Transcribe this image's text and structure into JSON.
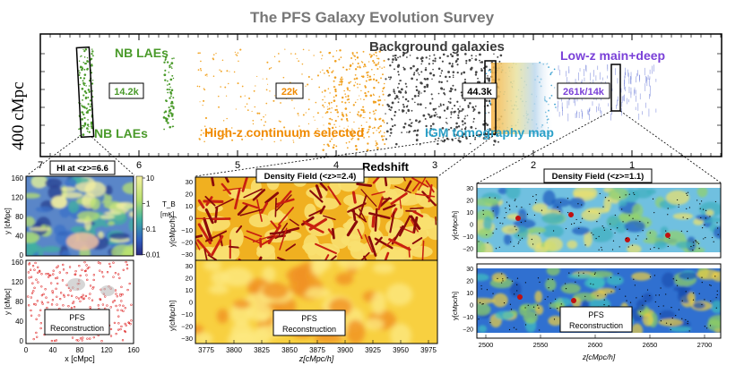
{
  "title": "The PFS Galaxy Evolution Survey",
  "strip": {
    "ylabel": "400 cMpc",
    "xlabel": "Redshift",
    "ticks": [
      "7",
      "6",
      "5",
      "4",
      "3",
      "2",
      "1"
    ],
    "labels": {
      "nb_laes_top": "NB LAEs",
      "nb_laes_bottom": "NB LAEs",
      "highz": "High-z continuum selected",
      "background": "Background galaxies",
      "igm": "IGM tomography map",
      "lowz": "Low-z main+deep"
    },
    "counts": {
      "nb": "14.2k",
      "highz": "22k",
      "background": "44.3k",
      "lowz": "261k/14k"
    }
  },
  "panel_hi": {
    "title": "HI at <z>=6.6",
    "ylabel": "y [cMpc]",
    "xlabel": "x [cMpc]",
    "yticks": [
      "160",
      "120",
      "80",
      "40",
      "0"
    ],
    "xticks": [
      "0",
      "40",
      "80",
      "120",
      "160"
    ],
    "cbar_ticks": [
      "10",
      "1",
      "0.1",
      "0.01"
    ],
    "cbar_label": "T_B",
    "cbar_unit": "[mK]",
    "recon_label_1": "PFS",
    "recon_label_2": "Reconstruction"
  },
  "panel_mid": {
    "title": "Density Field (<z>=2.4)",
    "ylabel_top": "y[cMpc/h]",
    "ylabel_bottom": "y[cMpc/h]",
    "xlabel": "z[cMpc/h]",
    "yticks": [
      "30",
      "20",
      "10",
      "0",
      "−10",
      "−20",
      "−30"
    ],
    "xticks": [
      "3775",
      "3800",
      "3825",
      "3850",
      "3875",
      "3900",
      "3925",
      "3950",
      "3975"
    ],
    "recon_label_1": "PFS",
    "recon_label_2": "Reconstruction"
  },
  "panel_right": {
    "title": "Density Field (<z>=1.1)",
    "ylabel_top": "y[cMpc/h]",
    "ylabel_bottom": "y[cMpc/h]",
    "xlabel": "z[cMpc/h]",
    "yticks_top": [
      "30",
      "20",
      "10",
      "0",
      "−10",
      "−20"
    ],
    "yticks_bottom": [
      "30",
      "20",
      "10",
      "0",
      "−10",
      "−20"
    ],
    "xticks": [
      "2500",
      "2550",
      "2600",
      "2650",
      "2700"
    ],
    "recon_label_1": "PFS",
    "recon_label_2": "Reconstruction"
  },
  "colors": {
    "nb_green": "#4a9a2a",
    "highz_orange": "#f0a020",
    "background_gray": "#444444",
    "igm_blue": "#2aa0c8",
    "lowz_purple": "#7a40d8",
    "title_gray": "#777777"
  }
}
